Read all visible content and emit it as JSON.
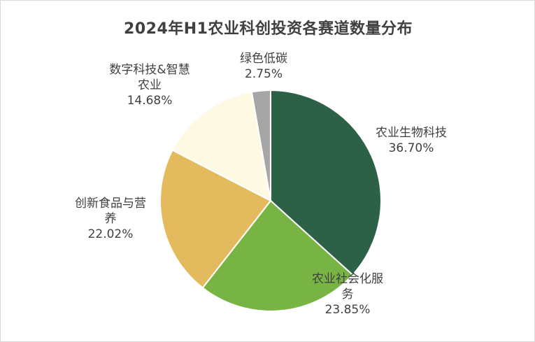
{
  "chart_data": {
    "type": "pie",
    "title": "2024年H1农业科创投资各赛道数量分布",
    "slices": [
      {
        "label_lines": [
          "农业生物科技"
        ],
        "value": 36.7,
        "value_text": "36.70%",
        "color": "#2d6147"
      },
      {
        "label_lines": [
          "农业社会化服",
          "务"
        ],
        "value": 23.85,
        "value_text": "23.85%",
        "color": "#77b443"
      },
      {
        "label_lines": [
          "创新食品与营",
          "养"
        ],
        "value": 22.02,
        "value_text": "22.02%",
        "color": "#e3ba5e"
      },
      {
        "label_lines": [
          "数字科技&智慧",
          "农业"
        ],
        "value": 14.68,
        "value_text": "14.68%",
        "color": "#fdf9e3"
      },
      {
        "label_lines": [
          "绿色低碳"
        ],
        "value": 2.75,
        "value_text": "2.75%",
        "color": "#a6a6a6"
      }
    ],
    "start_angle": "12 o'clock",
    "direction": "clockwise",
    "legend": "none",
    "data_labels": "category and percent, outside"
  }
}
